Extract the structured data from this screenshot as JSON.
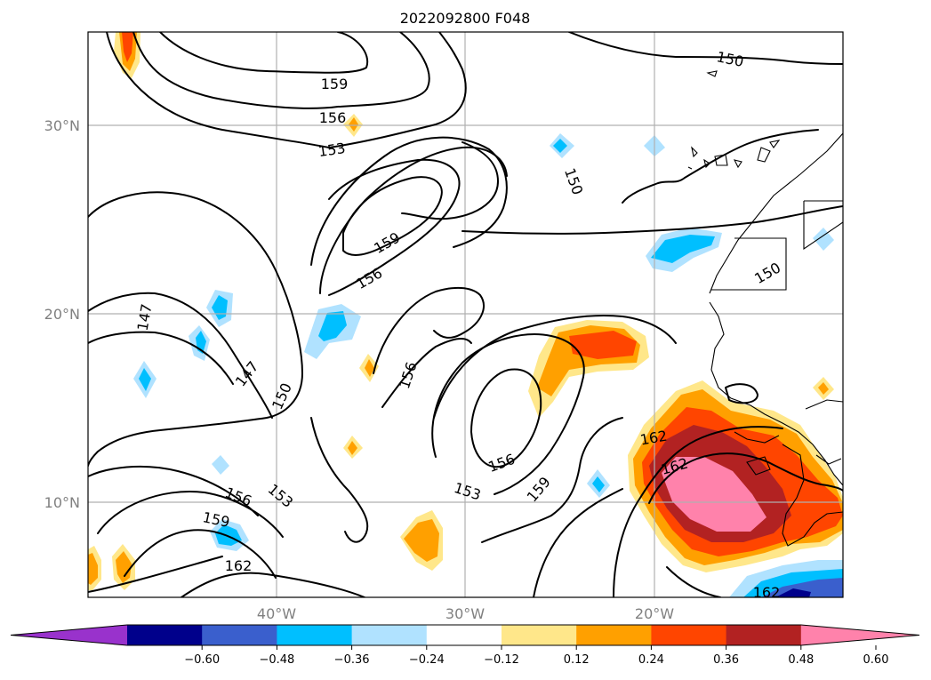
{
  "title": "2022092800 F048",
  "lat_labels": [
    "30°N",
    "20°N",
    "10°N"
  ],
  "lon_labels": [
    "40°W",
    "30°W",
    "20°W"
  ],
  "contour_labels": [
    "150",
    "159",
    "156",
    "153",
    "150",
    "159",
    "156",
    "147",
    "147",
    "150",
    "156",
    "150",
    "153",
    "156",
    "159",
    "162",
    "156",
    "153",
    "159",
    "162",
    "162"
  ],
  "colorbar": {
    "ticks": [
      "−0.60",
      "−0.48",
      "−0.36",
      "−0.24",
      "−0.12",
      "0.12",
      "0.24",
      "0.36",
      "0.48",
      "0.60"
    ],
    "colors": [
      "#9932cc",
      "#00008b",
      "#3a5fcd",
      "#00bfff",
      "#b0e2ff",
      "#ffffff",
      "#ffe78a",
      "#ffa000",
      "#ff4500",
      "#b22222",
      "#ff82ab"
    ]
  },
  "colors": {
    "grid": "#b0b0b0",
    "axis_label": "#808080"
  }
}
